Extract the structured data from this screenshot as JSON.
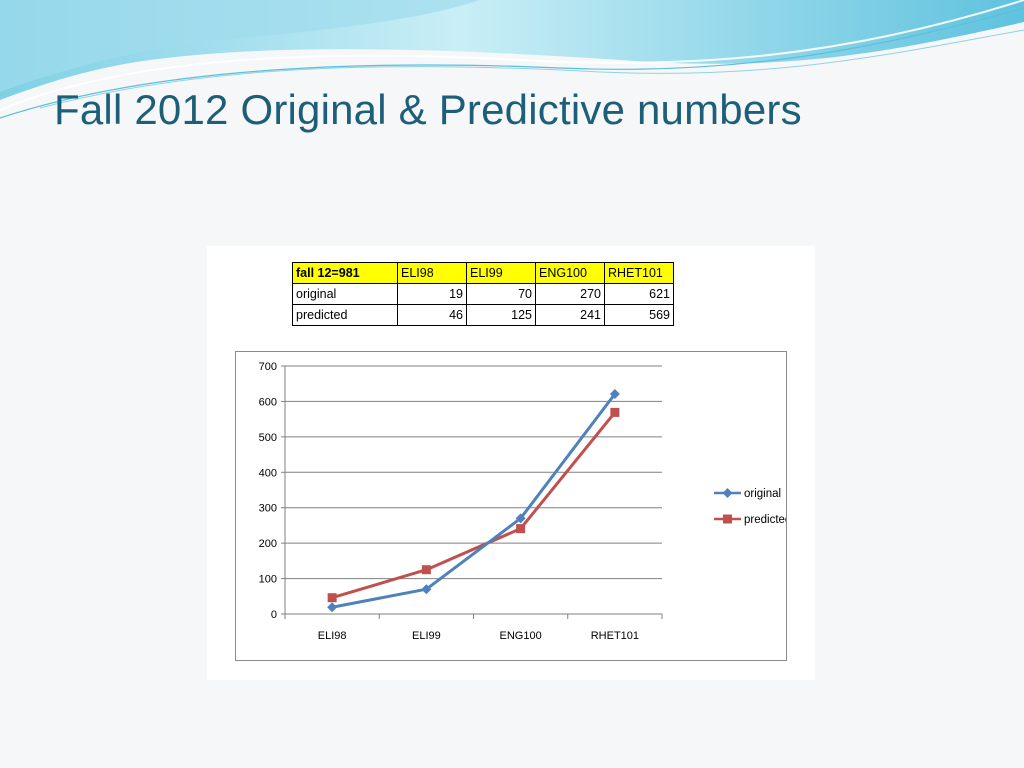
{
  "slide": {
    "title": "Fall 2012 Original & Predictive numbers"
  },
  "table": {
    "corner": "fall 12=981",
    "columns": [
      "ELI98",
      "ELI99",
      "ENG100",
      "RHET101"
    ],
    "rows": [
      {
        "label": "original",
        "values": [
          "19",
          "70",
          "270",
          "621"
        ]
      },
      {
        "label": "predicted",
        "values": [
          "46",
          "125",
          "241",
          "569"
        ]
      }
    ]
  },
  "colors": {
    "title": "#1d5f78",
    "header_fill": "#ffff00",
    "original": "#4f81bd",
    "predicted": "#c0504d",
    "gridline": "#808080"
  },
  "chart_data": {
    "type": "line",
    "categories": [
      "ELI98",
      "ELI99",
      "ENG100",
      "RHET101"
    ],
    "series": [
      {
        "name": "original",
        "values": [
          19,
          70,
          270,
          621
        ],
        "marker": "diamond"
      },
      {
        "name": "predicted",
        "values": [
          46,
          125,
          241,
          569
        ],
        "marker": "square"
      }
    ],
    "title": "",
    "xlabel": "",
    "ylabel": "",
    "ylim": [
      0,
      700
    ],
    "yticks": [
      0,
      100,
      200,
      300,
      400,
      500,
      600,
      700
    ],
    "grid": true,
    "legend": "right"
  }
}
